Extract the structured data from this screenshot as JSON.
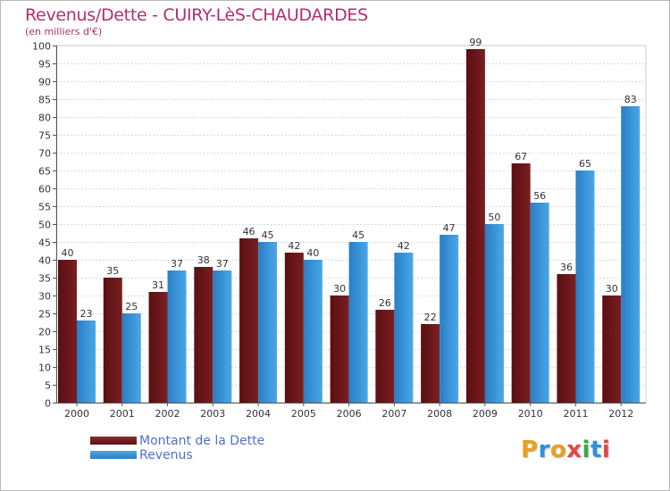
{
  "title": "Revenus/Dette - CUIRY-LèS-CHAUDARDES",
  "subtitle": "(en milliers d'€)",
  "colors": {
    "title": "#b0306a",
    "dette": "#7a1f22",
    "revenus": "#3d9ae0",
    "legend_text": "#4f6fd6"
  },
  "logo": {
    "text": "Proxiti"
  },
  "chart_data": {
    "type": "bar",
    "categories": [
      "2000",
      "2001",
      "2002",
      "2003",
      "2004",
      "2005",
      "2006",
      "2007",
      "2008",
      "2009",
      "2010",
      "2011",
      "2012"
    ],
    "series": [
      {
        "name": "Montant de la Dette",
        "values": [
          40,
          35,
          31,
          38,
          46,
          42,
          30,
          26,
          22,
          99,
          67,
          36,
          30
        ]
      },
      {
        "name": "Revenus",
        "values": [
          23,
          25,
          37,
          37,
          45,
          40,
          45,
          42,
          47,
          50,
          56,
          65,
          83
        ]
      }
    ],
    "ylim": [
      0,
      100
    ],
    "ytick_step": 5,
    "grid": true,
    "legend_position": "bottom-left"
  }
}
